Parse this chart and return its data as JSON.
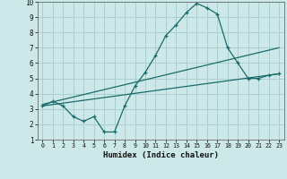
{
  "bg_color": "#cce8e8",
  "grid_color": "#aacfcf",
  "line_color": "#1a6b6b",
  "xlabel": "Humidex (Indice chaleur)",
  "xlim": [
    -0.5,
    23.5
  ],
  "ylim": [
    1,
    10
  ],
  "xticks": [
    0,
    1,
    2,
    3,
    4,
    5,
    6,
    7,
    8,
    9,
    10,
    11,
    12,
    13,
    14,
    15,
    16,
    17,
    18,
    19,
    20,
    21,
    22,
    23
  ],
  "yticks": [
    1,
    2,
    3,
    4,
    5,
    6,
    7,
    8,
    9,
    10
  ],
  "curve1_x": [
    0,
    1,
    2,
    3,
    4,
    5,
    6,
    7,
    8,
    9,
    10,
    11,
    12,
    13,
    14,
    15,
    16,
    17,
    18,
    19,
    20,
    21,
    22,
    23
  ],
  "curve1_y": [
    3.2,
    3.5,
    3.2,
    2.5,
    2.2,
    2.5,
    1.5,
    1.5,
    3.2,
    4.5,
    5.4,
    6.5,
    7.8,
    8.5,
    9.3,
    9.9,
    9.6,
    9.2,
    7.0,
    6.0,
    5.0,
    5.0,
    5.2,
    5.3
  ],
  "line2_x": [
    0,
    23
  ],
  "line2_y": [
    3.3,
    7.0
  ],
  "line3_x": [
    0,
    23
  ],
  "line3_y": [
    3.2,
    5.3
  ]
}
